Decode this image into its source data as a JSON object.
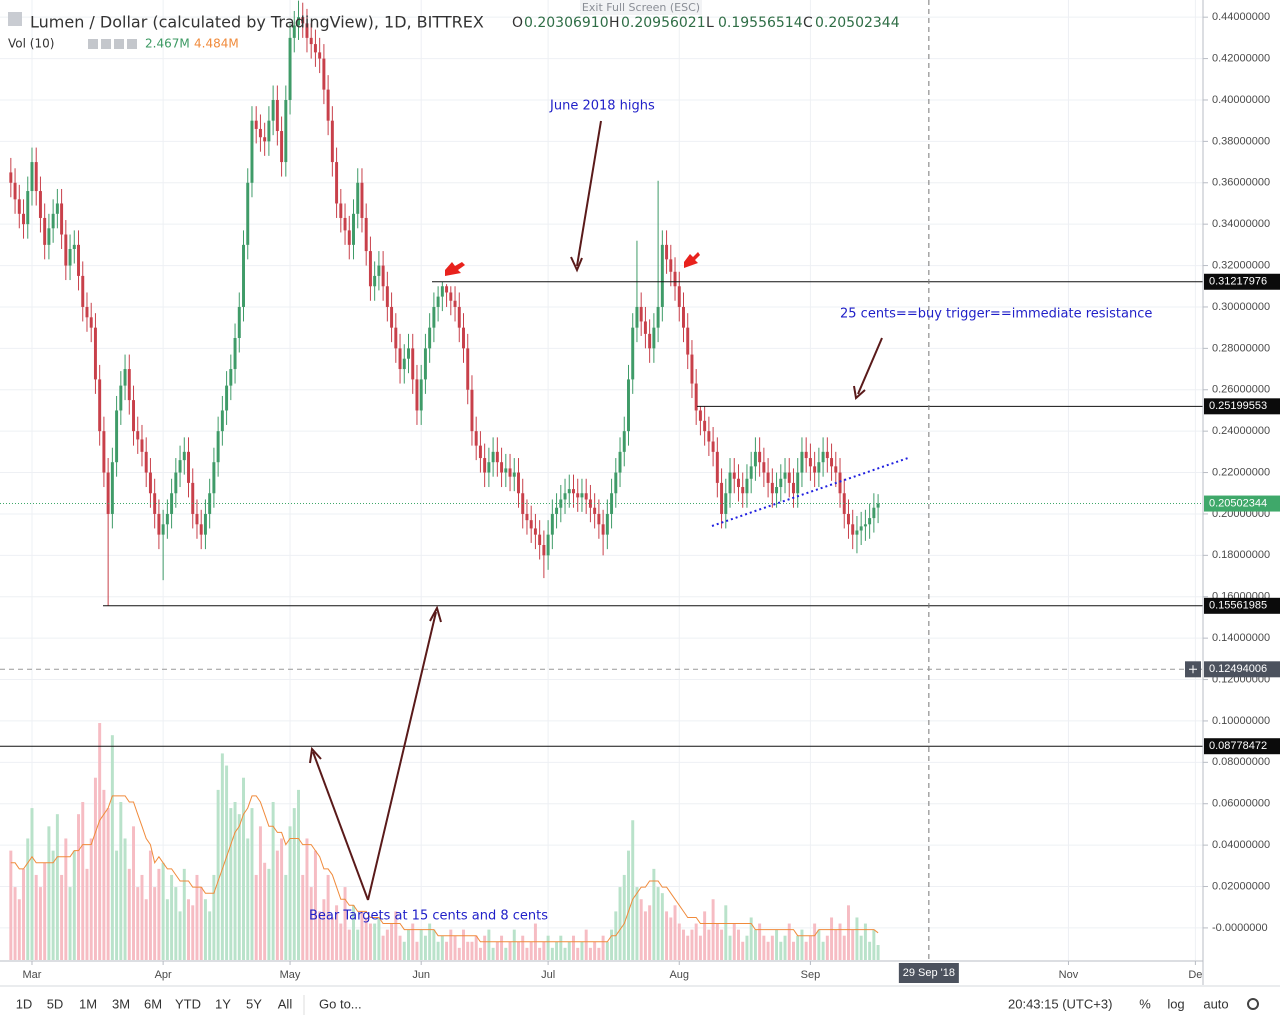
{
  "exit_fullscreen": "Exit Full Screen (ESC)",
  "chart_data": {
    "type": "candlestick",
    "title": "Lumen / Dollar (calculated by TradingView), 1D, BITTREX",
    "ohlc_legend": [
      {
        "key": "O",
        "text": "0.20306910"
      },
      {
        "key": "H",
        "text": "0.20956021"
      },
      {
        "key": "L",
        "text": "0.19556514"
      },
      {
        "key": "C",
        "text": "0.20502344"
      }
    ],
    "volume_legend": {
      "name": "Vol (10)",
      "values": [
        "2.467M",
        "4.484M"
      ],
      "colors": [
        "#3c9a63",
        "#f08b3c"
      ]
    },
    "up_color": "#3f9b68",
    "down_color": "#c8404a",
    "vol_up_color": "#b9e2ca",
    "vol_down_color": "#f6bcc3",
    "ma_color": "#f08b3c",
    "open": [
      0.365,
      0.36,
      0.352,
      0.345,
      0.34,
      0.356,
      0.37,
      0.356,
      0.343,
      0.33,
      0.338,
      0.345,
      0.35,
      0.335,
      0.32,
      0.328,
      0.33,
      0.315,
      0.3,
      0.295,
      0.29,
      0.265,
      0.24,
      0.22,
      0.2,
      0.225,
      0.25,
      0.262,
      0.27,
      0.255,
      0.24,
      0.236,
      0.23,
      0.22,
      0.21,
      0.2,
      0.19,
      0.195,
      0.2,
      0.21,
      0.22,
      0.226,
      0.23,
      0.215,
      0.2,
      0.195,
      0.19,
      0.2,
      0.21,
      0.225,
      0.24,
      0.25,
      0.262,
      0.27,
      0.285,
      0.3,
      0.33,
      0.36,
      0.39,
      0.386,
      0.382,
      0.38,
      0.39,
      0.4,
      0.385,
      0.37,
      0.4,
      0.43,
      0.436,
      0.44,
      0.437,
      0.43,
      0.427,
      0.423,
      0.42,
      0.405,
      0.39,
      0.37,
      0.35,
      0.343,
      0.337,
      0.33,
      0.345,
      0.36,
      0.343,
      0.327,
      0.31,
      0.315,
      0.32,
      0.31,
      0.3,
      0.29,
      0.28,
      0.27,
      0.275,
      0.28,
      0.265,
      0.25,
      0.265,
      0.28,
      0.29,
      0.3,
      0.305,
      0.31,
      0.307,
      0.303,
      0.3,
      0.29,
      0.28,
      0.26,
      0.24,
      0.233,
      0.227,
      0.22,
      0.225,
      0.23,
      0.225,
      0.22,
      0.222,
      0.218,
      0.22,
      0.21,
      0.2,
      0.197,
      0.193,
      0.19,
      0.185,
      0.18,
      0.19,
      0.2,
      0.203,
      0.207,
      0.21,
      0.212,
      0.21,
      0.208,
      0.21,
      0.207,
      0.203,
      0.2,
      0.195,
      0.19,
      0.2,
      0.21,
      0.22,
      0.23,
      0.24,
      0.265,
      0.29,
      0.3,
      0.293,
      0.287,
      0.28,
      0.29,
      0.3,
      0.33,
      0.323,
      0.317,
      0.31,
      0.3,
      0.29,
      0.277,
      0.263,
      0.25,
      0.245,
      0.24,
      0.235,
      0.23,
      0.215,
      0.2,
      0.21,
      0.22,
      0.217,
      0.213,
      0.21,
      0.217,
      0.223,
      0.23,
      0.225,
      0.22,
      0.215,
      0.21,
      0.213,
      0.217,
      0.22,
      0.215,
      0.21,
      0.22,
      0.23,
      0.227,
      0.223,
      0.22,
      0.225,
      0.23,
      0.227,
      0.223,
      0.22,
      0.21,
      0.2,
      0.195,
      0.19,
      0.192,
      0.194,
      0.195,
      0.198,
      0.2030691
    ],
    "high": [
      0.372,
      0.367,
      0.359,
      0.352,
      0.363,
      0.377,
      0.377,
      0.363,
      0.35,
      0.345,
      0.352,
      0.357,
      0.357,
      0.342,
      0.335,
      0.337,
      0.337,
      0.322,
      0.307,
      0.302,
      0.297,
      0.272,
      0.247,
      0.227,
      0.232,
      0.257,
      0.269,
      0.277,
      0.277,
      0.262,
      0.247,
      0.243,
      0.237,
      0.227,
      0.217,
      0.207,
      0.202,
      0.207,
      0.217,
      0.227,
      0.233,
      0.237,
      0.237,
      0.222,
      0.207,
      0.202,
      0.207,
      0.217,
      0.232,
      0.247,
      0.257,
      0.269,
      0.277,
      0.292,
      0.307,
      0.337,
      0.367,
      0.397,
      0.397,
      0.393,
      0.389,
      0.397,
      0.407,
      0.407,
      0.392,
      0.407,
      0.437,
      0.443,
      0.448,
      0.447,
      0.444,
      0.437,
      0.434,
      0.43,
      0.427,
      0.412,
      0.397,
      0.377,
      0.357,
      0.35,
      0.344,
      0.352,
      0.367,
      0.367,
      0.35,
      0.334,
      0.322,
      0.327,
      0.327,
      0.317,
      0.307,
      0.297,
      0.287,
      0.282,
      0.287,
      0.287,
      0.272,
      0.272,
      0.287,
      0.297,
      0.307,
      0.31,
      0.31217976,
      0.311,
      0.31,
      0.31,
      0.307,
      0.297,
      0.287,
      0.267,
      0.247,
      0.24,
      0.234,
      0.232,
      0.237,
      0.237,
      0.232,
      0.229,
      0.229,
      0.227,
      0.227,
      0.217,
      0.207,
      0.204,
      0.2,
      0.197,
      0.192,
      0.197,
      0.207,
      0.21,
      0.214,
      0.217,
      0.219,
      0.219,
      0.217,
      0.217,
      0.217,
      0.214,
      0.21,
      0.207,
      0.202,
      0.207,
      0.217,
      0.227,
      0.237,
      0.247,
      0.272,
      0.297,
      0.332,
      0.307,
      0.3,
      0.294,
      0.297,
      0.361,
      0.337,
      0.337,
      0.33,
      0.324,
      0.317,
      0.307,
      0.297,
      0.284,
      0.27,
      0.25199553,
      0.252,
      0.247,
      0.242,
      0.237,
      0.222,
      0.217,
      0.227,
      0.227,
      0.224,
      0.22,
      0.224,
      0.23,
      0.237,
      0.237,
      0.232,
      0.227,
      0.222,
      0.22,
      0.224,
      0.227,
      0.227,
      0.222,
      0.227,
      0.237,
      0.237,
      0.234,
      0.23,
      0.232,
      0.237,
      0.237,
      0.234,
      0.23,
      0.227,
      0.217,
      0.207,
      0.202,
      0.199,
      0.201,
      0.202,
      0.205,
      0.21,
      0.20956021
    ],
    "low": [
      0.353,
      0.345,
      0.338,
      0.333,
      0.333,
      0.349,
      0.349,
      0.336,
      0.323,
      0.323,
      0.331,
      0.338,
      0.328,
      0.313,
      0.313,
      0.321,
      0.308,
      0.293,
      0.288,
      0.283,
      0.258,
      0.233,
      0.213,
      0.15561985,
      0.193,
      0.218,
      0.243,
      0.255,
      0.248,
      0.233,
      0.229,
      0.223,
      0.213,
      0.203,
      0.193,
      0.183,
      0.168,
      0.188,
      0.193,
      0.203,
      0.213,
      0.219,
      0.208,
      0.193,
      0.188,
      0.183,
      0.183,
      0.193,
      0.203,
      0.218,
      0.233,
      0.243,
      0.255,
      0.263,
      0.278,
      0.293,
      0.323,
      0.353,
      0.379,
      0.375,
      0.373,
      0.373,
      0.383,
      0.378,
      0.363,
      0.363,
      0.393,
      0.423,
      0.429,
      0.43,
      0.423,
      0.42,
      0.416,
      0.413,
      0.398,
      0.383,
      0.363,
      0.343,
      0.336,
      0.33,
      0.323,
      0.323,
      0.338,
      0.336,
      0.32,
      0.303,
      0.303,
      0.308,
      0.303,
      0.293,
      0.283,
      0.273,
      0.263,
      0.263,
      0.268,
      0.258,
      0.243,
      0.243,
      0.258,
      0.273,
      0.283,
      0.293,
      0.298,
      0.3,
      0.296,
      0.293,
      0.283,
      0.273,
      0.253,
      0.233,
      0.226,
      0.22,
      0.213,
      0.213,
      0.218,
      0.218,
      0.213,
      0.213,
      0.211,
      0.211,
      0.203,
      0.193,
      0.19,
      0.186,
      0.183,
      0.178,
      0.169,
      0.173,
      0.183,
      0.193,
      0.196,
      0.2,
      0.203,
      0.203,
      0.201,
      0.201,
      0.2,
      0.196,
      0.193,
      0.188,
      0.18,
      0.183,
      0.193,
      0.203,
      0.213,
      0.223,
      0.233,
      0.258,
      0.283,
      0.286,
      0.28,
      0.273,
      0.273,
      0.283,
      0.293,
      0.316,
      0.31,
      0.303,
      0.293,
      0.283,
      0.27,
      0.256,
      0.243,
      0.238,
      0.233,
      0.228,
      0.223,
      0.208,
      0.193,
      0.193,
      0.203,
      0.21,
      0.206,
      0.203,
      0.203,
      0.21,
      0.216,
      0.218,
      0.213,
      0.208,
      0.203,
      0.203,
      0.206,
      0.21,
      0.208,
      0.203,
      0.203,
      0.213,
      0.22,
      0.216,
      0.213,
      0.213,
      0.218,
      0.22,
      0.216,
      0.213,
      0.203,
      0.193,
      0.188,
      0.183,
      0.181,
      0.185,
      0.187,
      0.188,
      0.191,
      0.19556514
    ],
    "close": [
      0.36,
      0.352,
      0.345,
      0.34,
      0.356,
      0.37,
      0.356,
      0.343,
      0.33,
      0.338,
      0.345,
      0.35,
      0.335,
      0.32,
      0.328,
      0.33,
      0.315,
      0.3,
      0.295,
      0.29,
      0.265,
      0.24,
      0.22,
      0.2,
      0.225,
      0.25,
      0.262,
      0.27,
      0.255,
      0.24,
      0.236,
      0.23,
      0.22,
      0.21,
      0.2,
      0.19,
      0.195,
      0.2,
      0.21,
      0.22,
      0.226,
      0.23,
      0.215,
      0.2,
      0.195,
      0.19,
      0.2,
      0.21,
      0.225,
      0.24,
      0.25,
      0.262,
      0.27,
      0.285,
      0.3,
      0.33,
      0.36,
      0.39,
      0.386,
      0.382,
      0.38,
      0.39,
      0.4,
      0.385,
      0.37,
      0.4,
      0.43,
      0.436,
      0.44,
      0.437,
      0.43,
      0.427,
      0.423,
      0.42,
      0.405,
      0.39,
      0.37,
      0.35,
      0.343,
      0.337,
      0.33,
      0.345,
      0.36,
      0.343,
      0.327,
      0.31,
      0.315,
      0.32,
      0.31,
      0.3,
      0.29,
      0.28,
      0.27,
      0.275,
      0.28,
      0.265,
      0.25,
      0.265,
      0.28,
      0.29,
      0.3,
      0.305,
      0.31,
      0.307,
      0.303,
      0.3,
      0.29,
      0.28,
      0.26,
      0.24,
      0.233,
      0.227,
      0.22,
      0.225,
      0.23,
      0.225,
      0.22,
      0.222,
      0.218,
      0.22,
      0.21,
      0.2,
      0.197,
      0.193,
      0.19,
      0.185,
      0.18,
      0.19,
      0.2,
      0.203,
      0.207,
      0.21,
      0.212,
      0.21,
      0.208,
      0.21,
      0.207,
      0.203,
      0.2,
      0.195,
      0.19,
      0.2,
      0.21,
      0.22,
      0.23,
      0.24,
      0.265,
      0.29,
      0.3,
      0.293,
      0.287,
      0.28,
      0.29,
      0.3,
      0.33,
      0.323,
      0.317,
      0.31,
      0.3,
      0.29,
      0.277,
      0.263,
      0.25,
      0.245,
      0.24,
      0.235,
      0.23,
      0.215,
      0.2,
      0.21,
      0.22,
      0.217,
      0.213,
      0.21,
      0.217,
      0.223,
      0.23,
      0.225,
      0.22,
      0.215,
      0.21,
      0.213,
      0.217,
      0.22,
      0.215,
      0.21,
      0.22,
      0.23,
      0.227,
      0.223,
      0.22,
      0.225,
      0.23,
      0.227,
      0.223,
      0.22,
      0.21,
      0.2,
      0.195,
      0.19,
      0.192,
      0.194,
      0.195,
      0.198,
      0.203,
      0.20502344
    ],
    "volume": [
      18,
      12,
      10,
      15,
      20,
      25,
      14,
      12,
      16,
      22,
      18,
      24,
      14,
      20,
      12,
      18,
      24,
      26,
      15,
      20,
      30,
      39,
      28,
      25,
      37,
      18,
      26,
      20,
      15,
      22,
      12,
      14,
      10,
      18,
      12,
      15,
      16,
      10,
      14,
      12,
      8,
      15,
      10,
      9,
      14,
      12,
      10,
      8,
      14,
      28,
      34,
      32,
      25,
      26,
      24,
      30,
      20,
      25,
      14,
      22,
      16,
      15,
      26,
      18,
      20,
      14,
      22,
      25,
      28,
      14,
      20,
      12,
      18,
      8,
      10,
      14,
      7,
      9,
      6,
      12,
      5,
      9,
      5,
      8,
      7,
      6,
      6,
      7,
      4,
      5,
      6,
      8,
      4,
      3,
      5,
      6,
      3,
      5,
      4,
      6,
      5,
      3,
      4,
      3,
      5,
      4,
      2,
      5,
      3,
      3,
      4,
      2,
      4,
      5,
      2,
      3,
      4,
      2,
      3,
      5,
      3,
      4,
      2,
      3,
      6,
      2,
      3,
      4,
      2,
      3,
      4,
      2,
      3,
      4,
      2,
      3,
      5,
      2,
      3,
      2,
      4,
      3,
      5,
      8,
      12,
      14,
      18,
      23,
      12,
      10,
      8,
      9,
      15,
      12,
      11,
      8,
      7,
      9,
      6,
      5,
      4,
      5,
      6,
      4,
      8,
      5,
      10,
      6,
      5,
      9,
      4,
      6,
      5,
      3,
      4,
      7,
      5,
      6,
      4,
      3,
      4,
      5,
      3,
      4,
      6,
      3,
      4,
      5,
      3,
      4,
      6,
      5,
      3,
      4,
      7,
      5,
      6,
      4,
      9,
      5,
      7,
      4,
      6,
      3,
      5,
      2.467
    ],
    "volume_ma": [
      16,
      16,
      15,
      15,
      16,
      17,
      16,
      16,
      16,
      16,
      16,
      17,
      17,
      17,
      17,
      18,
      18,
      19,
      19,
      19,
      21,
      23,
      24,
      25,
      27,
      27,
      27,
      27,
      26,
      26,
      24,
      22,
      20,
      19,
      16,
      17,
      16,
      15,
      15,
      14,
      13,
      13,
      13,
      12,
      12,
      12,
      11,
      11,
      11,
      13,
      15,
      17,
      19,
      21,
      22,
      24,
      25,
      27,
      27,
      26,
      24,
      22,
      22,
      21,
      21,
      19,
      20,
      20,
      20,
      19,
      19,
      19,
      18,
      17,
      15,
      15,
      14,
      12,
      10,
      10,
      9,
      9,
      8,
      8,
      8,
      7,
      7,
      7,
      6,
      6,
      6,
      6,
      6,
      5,
      5,
      5,
      5,
      5,
      5,
      5,
      5,
      4,
      4,
      4,
      4,
      4,
      4,
      4,
      4,
      4,
      4,
      3,
      3,
      3,
      3,
      3,
      3,
      3,
      3,
      3,
      3,
      3,
      3,
      3,
      3,
      3,
      3,
      3,
      3,
      3,
      3,
      3,
      3,
      3,
      3,
      3,
      3,
      3,
      3,
      3,
      3,
      3,
      4,
      4,
      5,
      6,
      8,
      10,
      11,
      12,
      12,
      13,
      13,
      13,
      12,
      12,
      11,
      10,
      9,
      8,
      7,
      7,
      7,
      6,
      6,
      6,
      6,
      6,
      6,
      6,
      6,
      6,
      6,
      6,
      6,
      6,
      5,
      5,
      5,
      5,
      5,
      5,
      5,
      5,
      5,
      5,
      4,
      4,
      4,
      4,
      4,
      5,
      5,
      5,
      5,
      5,
      5,
      5,
      5,
      5,
      5,
      5,
      5,
      5,
      5,
      4.484
    ],
    "xlim": [
      -2.56,
      281.8
    ],
    "xticks": [
      {
        "value": 5,
        "label": "Mar"
      },
      {
        "value": 36,
        "label": "Apr"
      },
      {
        "value": 66,
        "label": "May"
      },
      {
        "value": 97,
        "label": "Jun"
      },
      {
        "value": 127,
        "label": "Jul"
      },
      {
        "value": 158,
        "label": "Aug"
      },
      {
        "value": 189,
        "label": "Sep"
      },
      {
        "value": 250,
        "label": "Nov"
      },
      {
        "value": 280,
        "label": "De"
      }
    ],
    "ylim": [
      -0.0155,
      0.4483
    ],
    "yticks": [
      {
        "value": 0.44,
        "label": "0.44000000"
      },
      {
        "value": 0.42,
        "label": "0.42000000"
      },
      {
        "value": 0.4,
        "label": "0.40000000"
      },
      {
        "value": 0.38,
        "label": "0.38000000"
      },
      {
        "value": 0.36,
        "label": "0.36000000"
      },
      {
        "value": 0.34,
        "label": "0.34000000"
      },
      {
        "value": 0.32,
        "label": "0.32000000"
      },
      {
        "value": 0.3,
        "label": "0.30000000"
      },
      {
        "value": 0.28,
        "label": "0.28000000"
      },
      {
        "value": 0.26,
        "label": "0.26000000"
      },
      {
        "value": 0.24,
        "label": "0.24000000"
      },
      {
        "value": 0.22,
        "label": "0.22000000"
      },
      {
        "value": 0.2,
        "label": "0.20000000"
      },
      {
        "value": 0.18,
        "label": "0.18000000"
      },
      {
        "value": 0.16,
        "label": "0.16000000"
      },
      {
        "value": 0.14,
        "label": "0.14000000"
      },
      {
        "value": 0.12,
        "label": "0.12000000"
      },
      {
        "value": 0.1,
        "label": "0.10000000"
      },
      {
        "value": 0.08,
        "label": "0.08000000"
      },
      {
        "value": 0.06,
        "label": "0.06000000"
      },
      {
        "value": 0.04,
        "label": "0.04000000"
      },
      {
        "value": 0.02,
        "label": "0.02000000"
      },
      {
        "value": 0,
        "label": "-0.0000000"
      }
    ],
    "vol_ylim": [
      0,
      158
    ],
    "grid": true,
    "levels": [
      0.31217976,
      0.25199553,
      0.15561985,
      0.08778472
    ],
    "last_price": 0.20502344,
    "last_price_color": "#3fa86a",
    "crosshair": {
      "x": {
        "value": 217,
        "label": "29 Sep '18"
      },
      "y": 0.12494006
    },
    "annotations": [
      "June 2018 highs",
      "25 cents==buy trigger==immediate resistance",
      "Bear Targets at 15 cents and 8 cents"
    ]
  },
  "toolbar": {
    "ranges": [
      "1D",
      "5D",
      "1M",
      "3M",
      "6M",
      "YTD",
      "1Y",
      "5Y",
      "All"
    ],
    "goto": "Go to...",
    "time": "20:43:15 (UTC+3)",
    "options": [
      "%",
      "log",
      "auto"
    ]
  }
}
